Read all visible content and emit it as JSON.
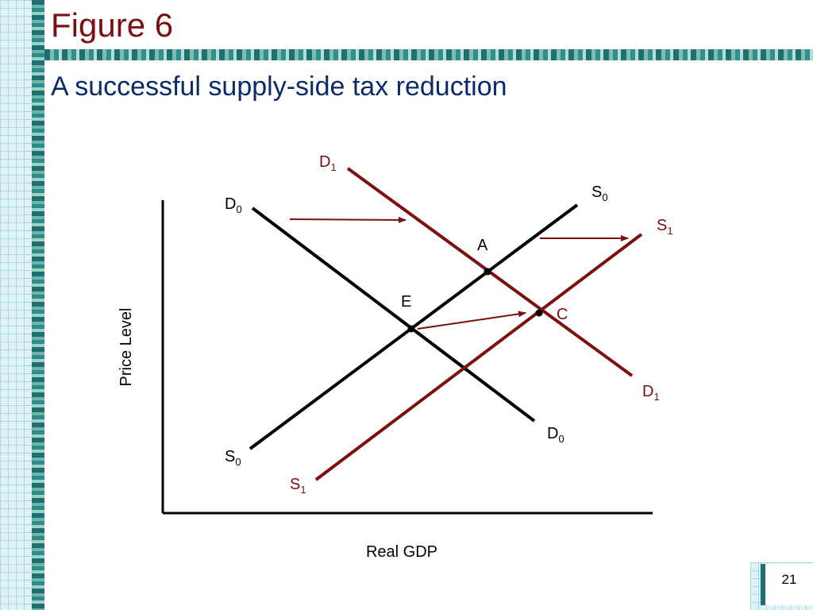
{
  "slide": {
    "title": "Figure 6",
    "subtitle": "A successful supply-side tax reduction",
    "page_number": "21"
  },
  "colors": {
    "title": "#7a1010",
    "subtitle": "#0a2a6b",
    "original_curves": "#000000",
    "shifted_curves": "#7a1010"
  },
  "diagram": {
    "y_axis_label": "Price Level",
    "x_axis_label": "Real GDP",
    "curves": {
      "d0": {
        "letter": "D",
        "sub": "0"
      },
      "d1": {
        "letter": "D",
        "sub": "1"
      },
      "s0": {
        "letter": "S",
        "sub": "0"
      },
      "s1": {
        "letter": "S",
        "sub": "1"
      }
    },
    "points": {
      "a": "A",
      "e": "E",
      "c": "C"
    }
  }
}
